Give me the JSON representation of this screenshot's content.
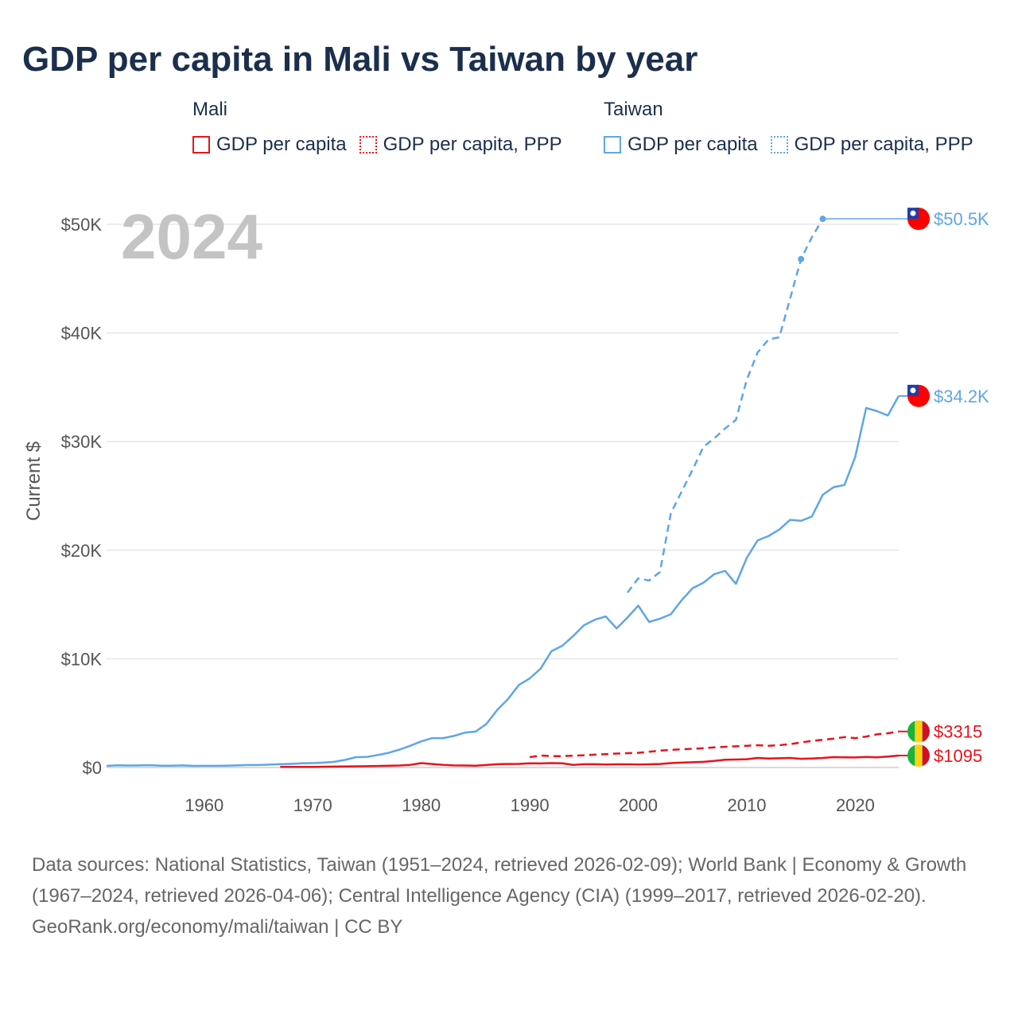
{
  "title": "GDP per capita in Mali vs Taiwan by year",
  "legend": {
    "mali": {
      "name": "Mali",
      "gdp": "GDP per capita",
      "ppp": "GDP per capita, PPP"
    },
    "taiwan": {
      "name": "Taiwan",
      "gdp": "GDP per capita",
      "ppp": "GDP per capita, PPP"
    }
  },
  "colors": {
    "mali": "#e8131b",
    "taiwan": "#5ea6e6",
    "title": "#1b2f4d"
  },
  "chart_data": {
    "type": "line",
    "year_label": "2024",
    "ylabel": "Current $",
    "xlim": [
      1951,
      2024
    ],
    "ylim": [
      0,
      50000
    ],
    "x_ticks": [
      1960,
      1970,
      1980,
      1990,
      2000,
      2010,
      2020
    ],
    "x_tick_labels": [
      "1960",
      "1970",
      "1980",
      "1990",
      "2000",
      "2010",
      "2020"
    ],
    "y_ticks": [
      0,
      10000,
      20000,
      30000,
      40000,
      50000
    ],
    "y_tick_labels": [
      "$0",
      "$10K",
      "$20K",
      "$30K",
      "$40K",
      "$50K"
    ],
    "series": [
      {
        "name": "Taiwan GDP per capita",
        "country": "taiwan",
        "style": "solid",
        "end_label": "$34.2K",
        "points": [
          [
            1951,
            150
          ],
          [
            1952,
            200
          ],
          [
            1953,
            180
          ],
          [
            1954,
            190
          ],
          [
            1955,
            210
          ],
          [
            1956,
            160
          ],
          [
            1957,
            170
          ],
          [
            1958,
            190
          ],
          [
            1959,
            150
          ],
          [
            1960,
            155
          ],
          [
            1961,
            155
          ],
          [
            1962,
            170
          ],
          [
            1963,
            190
          ],
          [
            1964,
            230
          ],
          [
            1965,
            230
          ],
          [
            1966,
            260
          ],
          [
            1967,
            300
          ],
          [
            1968,
            330
          ],
          [
            1969,
            380
          ],
          [
            1970,
            400
          ],
          [
            1971,
            450
          ],
          [
            1972,
            520
          ],
          [
            1973,
            700
          ],
          [
            1974,
            950
          ],
          [
            1975,
            970
          ],
          [
            1976,
            1150
          ],
          [
            1977,
            1350
          ],
          [
            1978,
            1650
          ],
          [
            1979,
            2000
          ],
          [
            1980,
            2400
          ],
          [
            1981,
            2700
          ],
          [
            1982,
            2700
          ],
          [
            1983,
            2900
          ],
          [
            1984,
            3200
          ],
          [
            1985,
            3300
          ],
          [
            1986,
            4000
          ],
          [
            1987,
            5300
          ],
          [
            1988,
            6300
          ],
          [
            1989,
            7600
          ],
          [
            1990,
            8200
          ],
          [
            1991,
            9100
          ],
          [
            1992,
            10700
          ],
          [
            1993,
            11200
          ],
          [
            1994,
            12100
          ],
          [
            1995,
            13100
          ],
          [
            1996,
            13600
          ],
          [
            1997,
            13900
          ],
          [
            1998,
            12800
          ],
          [
            1999,
            13800
          ],
          [
            2000,
            14900
          ],
          [
            2001,
            13400
          ],
          [
            2002,
            13700
          ],
          [
            2003,
            14100
          ],
          [
            2004,
            15400
          ],
          [
            2005,
            16500
          ],
          [
            2006,
            17000
          ],
          [
            2007,
            17800
          ],
          [
            2008,
            18100
          ],
          [
            2009,
            16900
          ],
          [
            2010,
            19300
          ],
          [
            2011,
            20900
          ],
          [
            2012,
            21300
          ],
          [
            2013,
            21900
          ],
          [
            2014,
            22800
          ],
          [
            2015,
            22700
          ],
          [
            2016,
            23100
          ],
          [
            2017,
            25100
          ],
          [
            2018,
            25800
          ],
          [
            2019,
            26000
          ],
          [
            2020,
            28600
          ],
          [
            2021,
            33100
          ],
          [
            2022,
            32800
          ],
          [
            2023,
            32400
          ],
          [
            2024,
            34200
          ]
        ]
      },
      {
        "name": "Taiwan GDP per capita, PPP",
        "country": "taiwan",
        "style": "dashed",
        "end_label": "$50.5K",
        "points": [
          [
            1999,
            16100
          ],
          [
            2000,
            17400
          ],
          [
            2001,
            17200
          ],
          [
            2002,
            18000
          ],
          [
            2003,
            23400
          ],
          [
            2004,
            25400
          ],
          [
            2005,
            27400
          ],
          [
            2006,
            29500
          ],
          [
            2007,
            30300
          ],
          [
            2008,
            31200
          ],
          [
            2009,
            32000
          ],
          [
            2010,
            35700
          ],
          [
            2011,
            38200
          ],
          [
            2012,
            39400
          ],
          [
            2013,
            39600
          ],
          [
            2014,
            43200
          ],
          [
            2015,
            46800
          ],
          [
            2016,
            48800
          ],
          [
            2017,
            50500
          ]
        ]
      },
      {
        "name": "Mali GDP per capita",
        "country": "mali",
        "style": "solid",
        "end_label": "$1095",
        "points": [
          [
            1967,
            50
          ],
          [
            1970,
            60
          ],
          [
            1975,
            120
          ],
          [
            1978,
            180
          ],
          [
            1979,
            240
          ],
          [
            1980,
            400
          ],
          [
            1981,
            320
          ],
          [
            1982,
            240
          ],
          [
            1983,
            190
          ],
          [
            1984,
            180
          ],
          [
            1985,
            160
          ],
          [
            1986,
            230
          ],
          [
            1987,
            300
          ],
          [
            1988,
            320
          ],
          [
            1989,
            330
          ],
          [
            1990,
            380
          ],
          [
            1991,
            370
          ],
          [
            1992,
            400
          ],
          [
            1993,
            380
          ],
          [
            1994,
            240
          ],
          [
            1995,
            300
          ],
          [
            1996,
            300
          ],
          [
            1997,
            270
          ],
          [
            1998,
            290
          ],
          [
            1999,
            290
          ],
          [
            2000,
            270
          ],
          [
            2001,
            290
          ],
          [
            2002,
            320
          ],
          [
            2003,
            400
          ],
          [
            2004,
            450
          ],
          [
            2005,
            480
          ],
          [
            2006,
            520
          ],
          [
            2007,
            600
          ],
          [
            2008,
            720
          ],
          [
            2009,
            730
          ],
          [
            2010,
            760
          ],
          [
            2011,
            880
          ],
          [
            2012,
            830
          ],
          [
            2013,
            850
          ],
          [
            2014,
            880
          ],
          [
            2015,
            800
          ],
          [
            2016,
            830
          ],
          [
            2017,
            880
          ],
          [
            2018,
            950
          ],
          [
            2019,
            930
          ],
          [
            2020,
            920
          ],
          [
            2021,
            970
          ],
          [
            2022,
            930
          ],
          [
            2023,
            1000
          ],
          [
            2024,
            1095
          ]
        ]
      },
      {
        "name": "Mali GDP per capita, PPP",
        "country": "mali",
        "style": "dashed",
        "end_label": "$3315",
        "points": [
          [
            1990,
            950
          ],
          [
            1991,
            1100
          ],
          [
            1992,
            1050
          ],
          [
            1993,
            1050
          ],
          [
            1994,
            1080
          ],
          [
            1995,
            1130
          ],
          [
            1996,
            1180
          ],
          [
            1997,
            1220
          ],
          [
            1998,
            1280
          ],
          [
            1999,
            1320
          ],
          [
            2000,
            1350
          ],
          [
            2001,
            1450
          ],
          [
            2002,
            1550
          ],
          [
            2003,
            1620
          ],
          [
            2004,
            1680
          ],
          [
            2005,
            1720
          ],
          [
            2006,
            1780
          ],
          [
            2007,
            1850
          ],
          [
            2008,
            1900
          ],
          [
            2009,
            1950
          ],
          [
            2010,
            2000
          ],
          [
            2011,
            2050
          ],
          [
            2012,
            2000
          ],
          [
            2013,
            2050
          ],
          [
            2014,
            2150
          ],
          [
            2015,
            2300
          ],
          [
            2016,
            2450
          ],
          [
            2017,
            2550
          ],
          [
            2018,
            2650
          ],
          [
            2019,
            2800
          ],
          [
            2020,
            2700
          ],
          [
            2021,
            2850
          ],
          [
            2022,
            3050
          ],
          [
            2023,
            3150
          ],
          [
            2024,
            3315
          ]
        ]
      }
    ]
  },
  "footer": {
    "sources": "Data sources: National Statistics, Taiwan (1951–2024, retrieved 2026-02-09); World Bank | Economy & Growth (1967–2024, retrieved 2026-04-06); Central Intelligence Agency (CIA) (1999–2017, retrieved 2026-02-20).",
    "credit": "GeoRank.org/economy/mali/taiwan | CC BY"
  }
}
